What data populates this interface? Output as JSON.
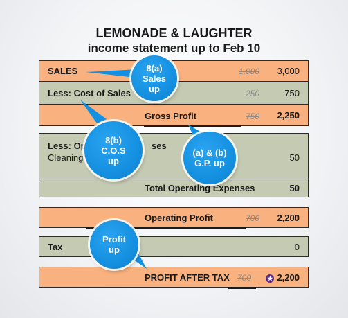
{
  "title": "LEMONADE & LAUGHTER",
  "subtitle": "income statement up to Feb 10",
  "rows": {
    "sales": {
      "label": "SALES",
      "old": "1,000",
      "value": "3,000"
    },
    "cos": {
      "label": "Less: Cost of Sales",
      "old": "250",
      "value": "750"
    },
    "gross": {
      "label": "Gross Profit",
      "old": "750",
      "value": "2,250"
    },
    "opex_header": {
      "label_left": "Less: Op",
      "label_right": "ses"
    },
    "cleaning": {
      "label": "Cleaning",
      "value": "50"
    },
    "total_opex": {
      "label": "Total Operating Expenses",
      "value": "50"
    },
    "operating": {
      "label": "Operating Profit",
      "old": "700",
      "value": "2,200"
    },
    "tax": {
      "label": "Tax",
      "value": "0"
    },
    "after_tax": {
      "label": "PROFIT AFTER TAX",
      "old": "700",
      "value": "2,200"
    }
  },
  "bubbles": {
    "sales_up": {
      "line1": "8(a)",
      "line2": "Sales",
      "line3": "up"
    },
    "cos_up": {
      "line1": "8(b)",
      "line2": "C.O.S",
      "line3": "up"
    },
    "gp_up": {
      "line1": "(a) & (b)",
      "line2": "G.P. up"
    },
    "profit_up": {
      "line1": "Profit",
      "line2": "up"
    }
  },
  "colors": {
    "orange": "#f9b27f",
    "green": "#c5cbb2",
    "bubble": "#1590e0",
    "star": "#5b2a86"
  }
}
